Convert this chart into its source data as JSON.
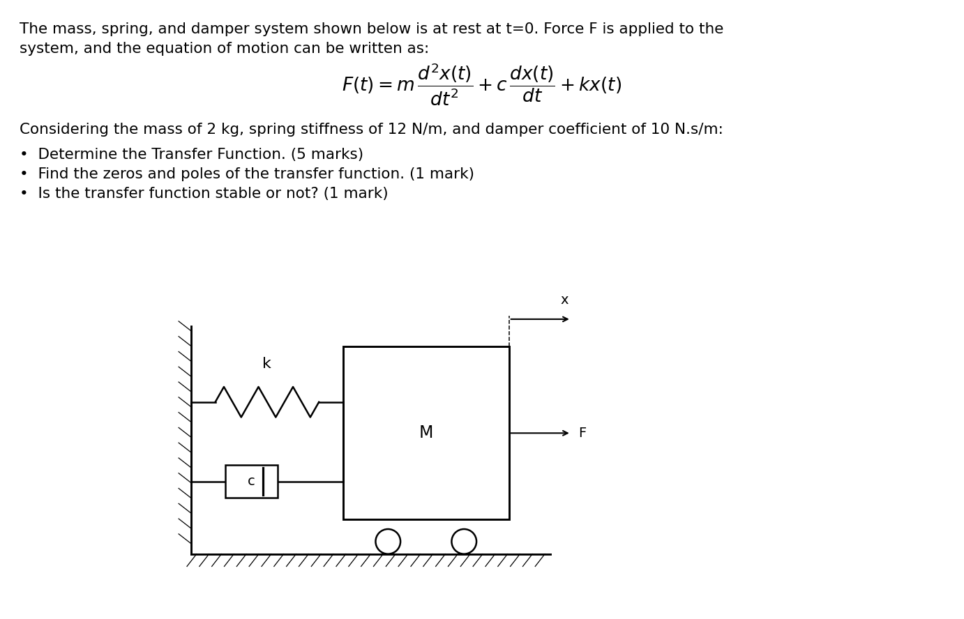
{
  "title_text1": "The mass, spring, and damper system shown below is at rest at t=0. Force F is applied to the",
  "title_text2": "system, and the equation of motion can be written as:",
  "param_text": "Considering the mass of 2 kg, spring stiffness of 12 N/m, and damper coefficient of 10 N.s/m:",
  "bullet1": "Determine the Transfer Function. (5 marks)",
  "bullet2": "Find the zeros and poles of the transfer function. (1 mark)",
  "bullet3": "Is the transfer function stable or not? (1 mark)",
  "bg_color": "#ffffff",
  "text_color": "#000000",
  "font_size_body": 15.5,
  "font_size_eq": 19
}
